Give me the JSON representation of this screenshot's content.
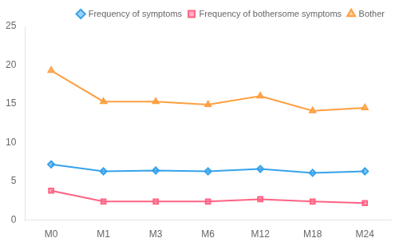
{
  "chart_data": {
    "type": "line",
    "categories": [
      "M0",
      "M1",
      "M3",
      "M6",
      "M12",
      "M18",
      "M24"
    ],
    "series": [
      {
        "name": "Frequency of symptoms",
        "values": [
          7.2,
          6.3,
          6.4,
          6.3,
          6.6,
          6.1,
          6.3
        ],
        "marker": "diamond"
      },
      {
        "name": "Frequency of bothersome symptoms",
        "values": [
          3.8,
          2.4,
          2.4,
          2.4,
          2.7,
          2.4,
          2.2
        ],
        "marker": "square"
      },
      {
        "name": "Bother",
        "values": [
          19.3,
          15.3,
          15.3,
          14.9,
          16.0,
          14.1,
          14.5
        ],
        "marker": "triangle"
      }
    ],
    "ylim": [
      0,
      25
    ],
    "yticks": [
      0,
      5,
      10,
      15,
      20,
      25
    ],
    "grid": false,
    "legend": "upper right"
  }
}
